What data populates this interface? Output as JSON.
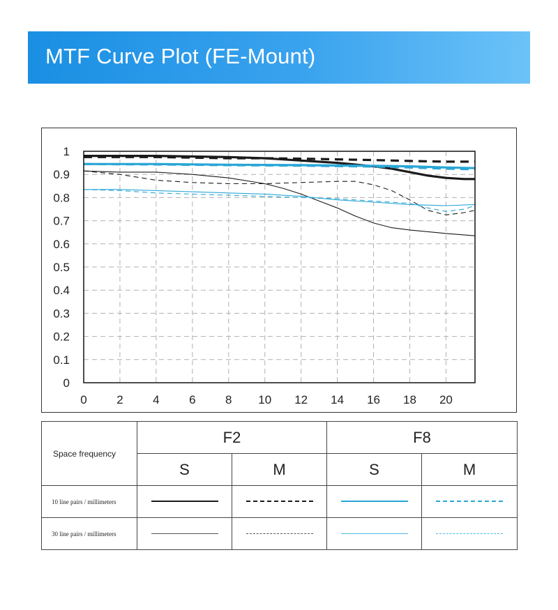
{
  "header": {
    "title": "MTF Curve Plot (FE-Mount)"
  },
  "colors": {
    "f2": "#1a1a1a",
    "f8": "#2aa6d6",
    "grid": "#b0b0b0"
  },
  "chart_data": {
    "type": "line",
    "title": "",
    "xlabel": "",
    "ylabel": "",
    "xlim": [
      0,
      21.6
    ],
    "ylim": [
      0,
      1
    ],
    "grid": true,
    "x_ticks": [
      "0",
      "2",
      "4",
      "6",
      "8",
      "10",
      "12",
      "14",
      "16",
      "18",
      "20"
    ],
    "y_ticks": [
      "0",
      "0.1",
      "0.2",
      "0.3",
      "0.4",
      "0.5",
      "0.6",
      "0.7",
      "0.8",
      "0.9",
      "1"
    ],
    "series": [
      {
        "aperture": "F2",
        "orientation": "S",
        "frequency": "10",
        "style": "solid",
        "weight": "thick",
        "color": "#1a1a1a",
        "x": [
          0,
          4,
          8,
          10,
          12,
          14,
          16,
          17,
          18,
          19,
          20,
          21,
          21.6
        ],
        "y": [
          0.98,
          0.98,
          0.975,
          0.97,
          0.96,
          0.95,
          0.935,
          0.925,
          0.91,
          0.895,
          0.885,
          0.88,
          0.88
        ]
      },
      {
        "aperture": "F2",
        "orientation": "M",
        "frequency": "10",
        "style": "dashed",
        "weight": "thick",
        "color": "#1a1a1a",
        "x": [
          0,
          4,
          8,
          10,
          12,
          14,
          16,
          18,
          20,
          21,
          21.6
        ],
        "y": [
          0.975,
          0.975,
          0.97,
          0.97,
          0.968,
          0.965,
          0.962,
          0.958,
          0.955,
          0.955,
          0.955
        ]
      },
      {
        "aperture": "F2",
        "orientation": "S",
        "frequency": "30",
        "style": "solid",
        "weight": "thin",
        "color": "#1a1a1a",
        "x": [
          0,
          2,
          4,
          6,
          8,
          10,
          11,
          12,
          13,
          14,
          15,
          16,
          17,
          18,
          20,
          21.6
        ],
        "y": [
          0.915,
          0.91,
          0.91,
          0.9,
          0.885,
          0.86,
          0.84,
          0.815,
          0.785,
          0.755,
          0.72,
          0.69,
          0.67,
          0.66,
          0.645,
          0.635
        ]
      },
      {
        "aperture": "F2",
        "orientation": "M",
        "frequency": "30",
        "style": "dashed",
        "weight": "thin",
        "color": "#1a1a1a",
        "x": [
          0,
          2,
          4,
          6,
          8,
          10,
          12,
          14,
          15,
          16,
          17,
          18,
          19,
          20,
          21,
          21.6
        ],
        "y": [
          0.915,
          0.9,
          0.875,
          0.865,
          0.86,
          0.86,
          0.865,
          0.87,
          0.87,
          0.855,
          0.83,
          0.79,
          0.745,
          0.725,
          0.735,
          0.745
        ]
      },
      {
        "aperture": "F8",
        "orientation": "S",
        "frequency": "10",
        "style": "solid",
        "weight": "thick",
        "color": "#2aa6d6",
        "x": [
          0,
          4,
          8,
          12,
          16,
          18,
          20,
          21.6
        ],
        "y": [
          0.945,
          0.945,
          0.942,
          0.94,
          0.937,
          0.935,
          0.93,
          0.927
        ]
      },
      {
        "aperture": "F8",
        "orientation": "M",
        "frequency": "10",
        "style": "dashed",
        "weight": "thick",
        "color": "#2aa6d6",
        "x": [
          0,
          4,
          8,
          12,
          16,
          18,
          20,
          21.6
        ],
        "y": [
          0.945,
          0.943,
          0.94,
          0.938,
          0.934,
          0.93,
          0.925,
          0.922
        ]
      },
      {
        "aperture": "F8",
        "orientation": "S",
        "frequency": "30",
        "style": "solid",
        "weight": "thin",
        "color": "#2aa6d6",
        "x": [
          0,
          2,
          4,
          6,
          8,
          10,
          12,
          14,
          16,
          18,
          20,
          21.6
        ],
        "y": [
          0.835,
          0.835,
          0.83,
          0.825,
          0.82,
          0.815,
          0.805,
          0.79,
          0.78,
          0.77,
          0.765,
          0.77
        ]
      },
      {
        "aperture": "F8",
        "orientation": "M",
        "frequency": "30",
        "style": "dashed",
        "weight": "thin",
        "color": "#2aa6d6",
        "x": [
          0,
          2,
          4,
          6,
          8,
          10,
          12,
          14,
          16,
          18,
          19,
          20,
          21,
          21.6
        ],
        "y": [
          0.835,
          0.83,
          0.82,
          0.815,
          0.81,
          0.805,
          0.8,
          0.795,
          0.785,
          0.775,
          0.755,
          0.74,
          0.75,
          0.765
        ]
      }
    ]
  },
  "legend": {
    "space_frequency_label": "Space frequency",
    "f2_label": "F2",
    "f8_label": "F8",
    "s_label": "S",
    "m_label": "M",
    "row_10_label": "10 line pairs / millimeters",
    "row_30_label": "30 line pairs / millimeters"
  }
}
